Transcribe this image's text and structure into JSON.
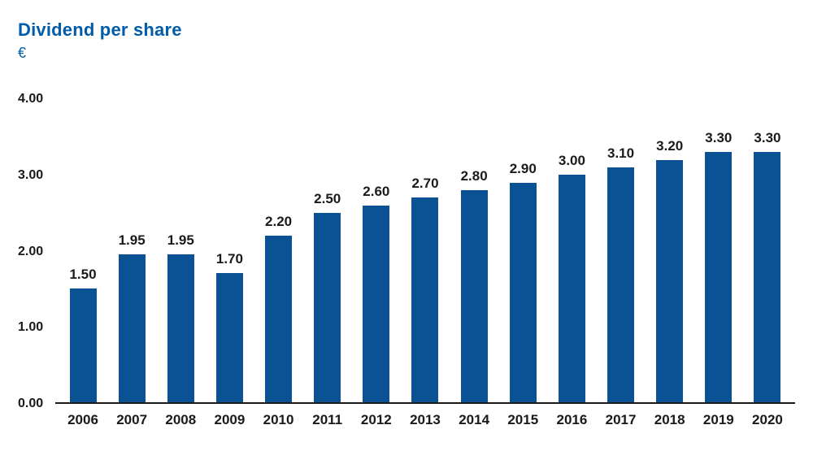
{
  "chart_data": {
    "type": "bar",
    "title": "Dividend per share",
    "ylabel": "€",
    "categories": [
      "2006",
      "2007",
      "2008",
      "2009",
      "2010",
      "2011",
      "2012",
      "2013",
      "2014",
      "2015",
      "2016",
      "2017",
      "2018",
      "2019",
      "2020"
    ],
    "values": [
      1.5,
      1.95,
      1.95,
      1.7,
      2.2,
      2.5,
      2.6,
      2.7,
      2.8,
      2.9,
      3.0,
      3.1,
      3.2,
      3.3,
      3.3
    ],
    "value_labels": [
      "1.50",
      "1.95",
      "1.95",
      "1.70",
      "2.20",
      "2.50",
      "2.60",
      "2.70",
      "2.80",
      "2.90",
      "3.00",
      "3.10",
      "3.20",
      "3.30",
      "3.30"
    ],
    "ylim": [
      0,
      4
    ],
    "yticks": [
      "4.00",
      "3.00",
      "2.00",
      "1.00",
      "0.00"
    ],
    "grid": false,
    "legend": false,
    "bar_color": "#0a5294",
    "title_color": "#005ca9",
    "axis_color": "#1a1a1a"
  }
}
